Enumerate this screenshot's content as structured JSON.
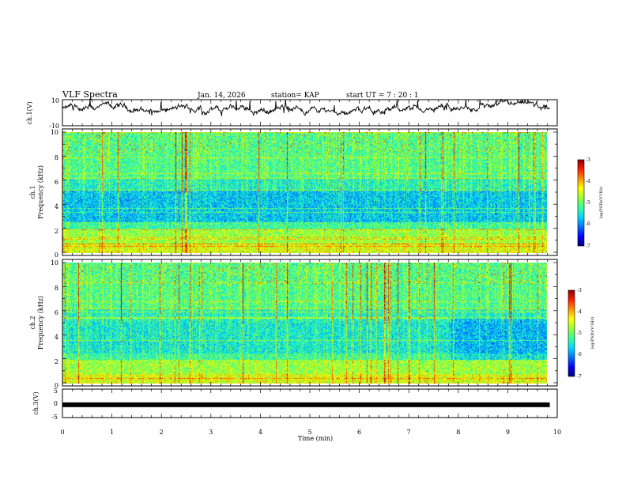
{
  "header": {
    "title": "VLF Spectra",
    "date": "Jan. 14, 2026",
    "station": "station= KAP",
    "start_ut": "start UT =  7 : 20 : 1"
  },
  "chart_data": [
    {
      "type": "line",
      "panel": "ch1-waveform",
      "ylabel": "ch.1(V)",
      "ylim": [
        -10,
        10
      ],
      "yticks": [
        "10",
        "-10"
      ],
      "x_range_min": [
        0,
        9.85
      ],
      "description_level": "noisy waveform around 0 to +5 V"
    },
    {
      "type": "heatmap",
      "panel": "ch1-spectrogram",
      "title": "ch.1",
      "ylabel": "Frequency (kHz)",
      "ylim": [
        0,
        10
      ],
      "yticks": [
        "0",
        "2",
        "4",
        "6",
        "8",
        "10"
      ],
      "x_range_min": [
        0,
        9.85
      ],
      "colorbar": {
        "label": "log(PSD)(V²/Hz)",
        "range": [
          -7,
          -3
        ],
        "ticks": [
          "-3",
          "-4",
          "-5",
          "-6",
          "-7"
        ]
      }
    },
    {
      "type": "heatmap",
      "panel": "ch2-spectrogram",
      "title": "ch.2",
      "ylabel": "Frequency (kHz)",
      "ylim": [
        0,
        10
      ],
      "yticks": [
        "0",
        "2",
        "4",
        "6",
        "8",
        "10"
      ],
      "x_range_min": [
        0,
        9.85
      ],
      "colorbar": {
        "label": "log(PSD)(V²/Hz)",
        "range": [
          -7,
          -3
        ],
        "ticks": [
          "-3",
          "-4",
          "-5",
          "-6",
          "-7"
        ]
      }
    },
    {
      "type": "line",
      "panel": "ch3-waveform",
      "ylabel": "ch.3(V)",
      "ylim": [
        -5,
        5
      ],
      "yticks": [
        "5",
        "0",
        "-5"
      ],
      "level": -0.5,
      "x_range_min": [
        0,
        9.85
      ]
    }
  ],
  "x_axis": {
    "label": "Time (min)",
    "range": [
      0,
      10
    ],
    "ticks": [
      "0",
      "1",
      "2",
      "3",
      "4",
      "5",
      "6",
      "7",
      "8",
      "9",
      "10"
    ]
  },
  "colors": {
    "colormap": [
      "#00007a",
      "#0000ff",
      "#0070ff",
      "#00d8ff",
      "#30ff9a",
      "#9aff30",
      "#ffff00",
      "#ff9000",
      "#ff1a00",
      "#8a0000"
    ]
  }
}
